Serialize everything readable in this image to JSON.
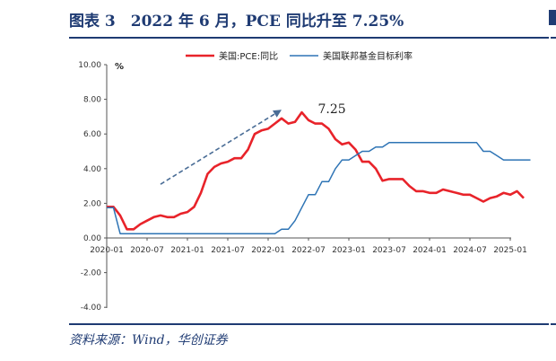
{
  "header": {
    "title": "图表 3　2022 年 6 月，PCE 同比升至 7.25%"
  },
  "footer": {
    "source": "资料来源：Wind，华创证券"
  },
  "colors": {
    "brand": "#1f3b73",
    "pce": "#e8232a",
    "fed": "#2e74b5",
    "arrow": "#4a6d96"
  },
  "chart_data": {
    "type": "line",
    "unit_label": "%",
    "ylim": [
      -4.0,
      10.0
    ],
    "yticks": [
      "10.00",
      "8.00",
      "6.00",
      "4.00",
      "2.00",
      "0.00",
      "-2.00",
      "-4.00"
    ],
    "ytick_values": [
      10,
      8,
      6,
      4,
      2,
      0,
      -2,
      -4
    ],
    "x_start": "2020-01",
    "x_end": "2025-04",
    "xticks": [
      "2020-01",
      "2020-07",
      "2021-01",
      "2021-07",
      "2022-01",
      "2022-07",
      "2023-01",
      "2023-07",
      "2024-01",
      "2024-07",
      "2025-01"
    ],
    "legend_position": "top",
    "annotation": {
      "text": "7.25",
      "month": "2022-06"
    },
    "trend_arrow": {
      "from": {
        "month": "2020-09",
        "value": 3.1
      },
      "to": {
        "month": "2022-03",
        "value": 7.4
      }
    },
    "series": [
      {
        "name": "美国:PCE:同比",
        "color": "#e8232a",
        "months": [
          "2020-01",
          "2020-02",
          "2020-03",
          "2020-04",
          "2020-05",
          "2020-06",
          "2020-07",
          "2020-08",
          "2020-09",
          "2020-10",
          "2020-11",
          "2020-12",
          "2021-01",
          "2021-02",
          "2021-03",
          "2021-04",
          "2021-05",
          "2021-06",
          "2021-07",
          "2021-08",
          "2021-09",
          "2021-10",
          "2021-11",
          "2021-12",
          "2022-01",
          "2022-02",
          "2022-03",
          "2022-04",
          "2022-05",
          "2022-06",
          "2022-07",
          "2022-08",
          "2022-09",
          "2022-10",
          "2022-11",
          "2022-12",
          "2023-01",
          "2023-02",
          "2023-03",
          "2023-04",
          "2023-05",
          "2023-06",
          "2023-07",
          "2023-08",
          "2023-09",
          "2023-10",
          "2023-11",
          "2023-12",
          "2024-01",
          "2024-02",
          "2024-03",
          "2024-04",
          "2024-05",
          "2024-06",
          "2024-07",
          "2024-08",
          "2024-09",
          "2024-10",
          "2024-11",
          "2024-12",
          "2025-01",
          "2025-02",
          "2025-03"
        ],
        "values": [
          1.8,
          1.8,
          1.3,
          0.5,
          0.5,
          0.8,
          1.0,
          1.2,
          1.3,
          1.2,
          1.2,
          1.4,
          1.5,
          1.8,
          2.6,
          3.7,
          4.1,
          4.3,
          4.4,
          4.6,
          4.6,
          5.1,
          6.0,
          6.2,
          6.3,
          6.6,
          6.9,
          6.6,
          6.7,
          7.25,
          6.8,
          6.6,
          6.6,
          6.3,
          5.7,
          5.4,
          5.5,
          5.1,
          4.4,
          4.4,
          4.0,
          3.3,
          3.4,
          3.4,
          3.4,
          3.0,
          2.7,
          2.7,
          2.6,
          2.6,
          2.8,
          2.7,
          2.6,
          2.5,
          2.5,
          2.3,
          2.1,
          2.3,
          2.4,
          2.6,
          2.5,
          2.7,
          2.3
        ]
      },
      {
        "name": "美国联邦基金目标利率",
        "color": "#2e74b5",
        "months": [
          "2020-01",
          "2020-02",
          "2020-03",
          "2020-04",
          "2021-01",
          "2021-07",
          "2022-01",
          "2022-02",
          "2022-03",
          "2022-04",
          "2022-05",
          "2022-06",
          "2022-07",
          "2022-08",
          "2022-09",
          "2022-10",
          "2022-11",
          "2022-12",
          "2023-01",
          "2023-02",
          "2023-03",
          "2023-04",
          "2023-05",
          "2023-06",
          "2023-07",
          "2023-08",
          "2024-01",
          "2024-08",
          "2024-09",
          "2024-10",
          "2024-11",
          "2024-12",
          "2025-01",
          "2025-02",
          "2025-03",
          "2025-04"
        ],
        "values": [
          1.75,
          1.75,
          0.25,
          0.25,
          0.25,
          0.25,
          0.25,
          0.25,
          0.5,
          0.5,
          1.0,
          1.75,
          2.5,
          2.5,
          3.25,
          3.25,
          4.0,
          4.5,
          4.5,
          4.75,
          5.0,
          5.0,
          5.25,
          5.25,
          5.5,
          5.5,
          5.5,
          5.5,
          5.0,
          5.0,
          4.75,
          4.5,
          4.5,
          4.5,
          4.5,
          4.5
        ]
      }
    ]
  }
}
